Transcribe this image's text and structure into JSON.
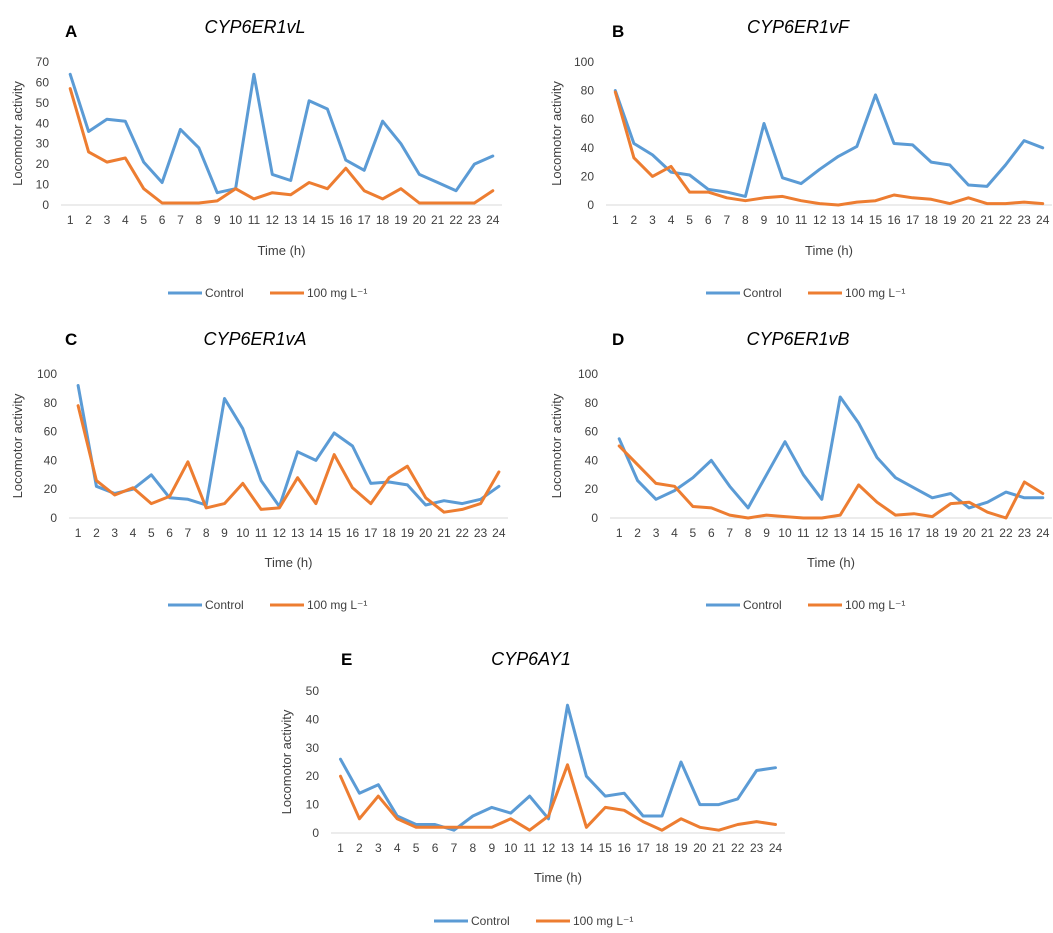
{
  "colors": {
    "control": "#5b9bd5",
    "treatment": "#ed7d31",
    "axis": "#d9d9d9",
    "text": "#404040"
  },
  "chart_data": [
    {
      "type": "line",
      "panel": "A",
      "title": "CYP6ER1vL",
      "xlabel": "Time (h)",
      "ylabel": "Locomotor activity",
      "x": [
        1,
        2,
        3,
        4,
        5,
        6,
        7,
        8,
        9,
        10,
        11,
        12,
        13,
        14,
        15,
        16,
        17,
        18,
        19,
        20,
        21,
        22,
        23,
        24
      ],
      "ylim": [
        0,
        70
      ],
      "yticks": [
        0,
        10,
        20,
        30,
        40,
        50,
        60,
        70
      ],
      "legend_position": "bottom",
      "series": [
        {
          "name": "Control",
          "values": [
            64,
            36,
            42,
            41,
            21,
            11,
            37,
            28,
            6,
            8,
            64,
            15,
            12,
            51,
            47,
            22,
            17,
            41,
            30,
            15,
            11,
            7,
            20,
            24
          ]
        },
        {
          "name": "100 mg L⁻¹",
          "values": [
            57,
            26,
            21,
            23,
            8,
            1,
            1,
            1,
            2,
            8,
            3,
            6,
            5,
            11,
            8,
            18,
            7,
            3,
            8,
            1,
            1,
            1,
            1,
            7
          ]
        }
      ]
    },
    {
      "type": "line",
      "panel": "B",
      "title": "CYP6ER1vF",
      "xlabel": "Time (h)",
      "ylabel": "Locomotor activity",
      "x": [
        1,
        2,
        3,
        4,
        5,
        6,
        7,
        8,
        9,
        10,
        11,
        12,
        13,
        14,
        15,
        16,
        17,
        18,
        19,
        20,
        21,
        22,
        23,
        24
      ],
      "ylim": [
        0,
        100
      ],
      "yticks": [
        0,
        20,
        40,
        60,
        80,
        100
      ],
      "legend_position": "bottom",
      "series": [
        {
          "name": "Control",
          "values": [
            80,
            43,
            35,
            23,
            21,
            11,
            9,
            6,
            57,
            19,
            15,
            25,
            34,
            41,
            77,
            43,
            42,
            30,
            28,
            14,
            13,
            28,
            45,
            40
          ]
        },
        {
          "name": "100 mg L⁻¹",
          "values": [
            79,
            33,
            20,
            27,
            9,
            9,
            5,
            3,
            5,
            6,
            3,
            1,
            0,
            2,
            3,
            7,
            5,
            4,
            1,
            5,
            1,
            1,
            2,
            1
          ]
        }
      ]
    },
    {
      "type": "line",
      "panel": "C",
      "title": "CYP6ER1vA",
      "xlabel": "Time (h)",
      "ylabel": "Locomotor activity",
      "x": [
        1,
        2,
        3,
        4,
        5,
        6,
        7,
        8,
        9,
        10,
        11,
        12,
        13,
        14,
        15,
        16,
        17,
        18,
        19,
        20,
        21,
        22,
        23,
        24
      ],
      "ylim": [
        0,
        100
      ],
      "yticks": [
        0,
        20,
        40,
        60,
        80,
        100
      ],
      "legend_position": "bottom",
      "series": [
        {
          "name": "Control",
          "values": [
            92,
            22,
            17,
            20,
            30,
            14,
            13,
            9,
            83,
            62,
            26,
            8,
            46,
            40,
            59,
            50,
            24,
            25,
            23,
            9,
            12,
            10,
            13,
            22
          ]
        },
        {
          "name": "100 mg L⁻¹",
          "values": [
            78,
            26,
            16,
            21,
            10,
            15,
            39,
            7,
            10,
            24,
            6,
            7,
            28,
            10,
            44,
            21,
            10,
            28,
            36,
            14,
            4,
            6,
            10,
            32
          ]
        }
      ]
    },
    {
      "type": "line",
      "panel": "D",
      "title": "CYP6ER1vB",
      "xlabel": "Time (h)",
      "ylabel": "Locomotor activity",
      "x": [
        1,
        2,
        3,
        4,
        5,
        6,
        7,
        8,
        9,
        10,
        11,
        12,
        13,
        14,
        15,
        16,
        17,
        18,
        19,
        20,
        21,
        22,
        23,
        24
      ],
      "ylim": [
        0,
        100
      ],
      "yticks": [
        0,
        20,
        40,
        60,
        80,
        100
      ],
      "legend_position": "bottom",
      "series": [
        {
          "name": "Control",
          "values": [
            55,
            26,
            13,
            19,
            28,
            40,
            22,
            7,
            30,
            53,
            30,
            13,
            84,
            66,
            42,
            28,
            21,
            14,
            17,
            7,
            11,
            18,
            14,
            14
          ]
        },
        {
          "name": "100 mg L⁻¹",
          "values": [
            50,
            37,
            24,
            22,
            8,
            7,
            2,
            0,
            2,
            1,
            0,
            0,
            2,
            23,
            11,
            2,
            3,
            1,
            10,
            11,
            4,
            0,
            25,
            17
          ]
        }
      ]
    },
    {
      "type": "line",
      "panel": "E",
      "title": "CYP6AY1",
      "xlabel": "Time (h)",
      "ylabel": "Locomotor activity",
      "x": [
        1,
        2,
        3,
        4,
        5,
        6,
        7,
        8,
        9,
        10,
        11,
        12,
        13,
        14,
        15,
        16,
        17,
        18,
        19,
        20,
        21,
        22,
        23,
        24
      ],
      "ylim": [
        0,
        50
      ],
      "yticks": [
        0,
        10,
        20,
        30,
        40,
        50
      ],
      "legend_position": "bottom",
      "series": [
        {
          "name": "Control",
          "values": [
            26,
            14,
            17,
            6,
            3,
            3,
            1,
            6,
            9,
            7,
            13,
            5,
            45,
            20,
            13,
            14,
            6,
            6,
            25,
            10,
            10,
            12,
            22,
            23
          ]
        },
        {
          "name": "100 mg L⁻¹",
          "values": [
            20,
            5,
            13,
            5,
            2,
            2,
            2,
            2,
            2,
            5,
            1,
            6,
            24,
            2,
            9,
            8,
            4,
            1,
            5,
            2,
            1,
            3,
            4,
            3
          ]
        }
      ]
    }
  ]
}
